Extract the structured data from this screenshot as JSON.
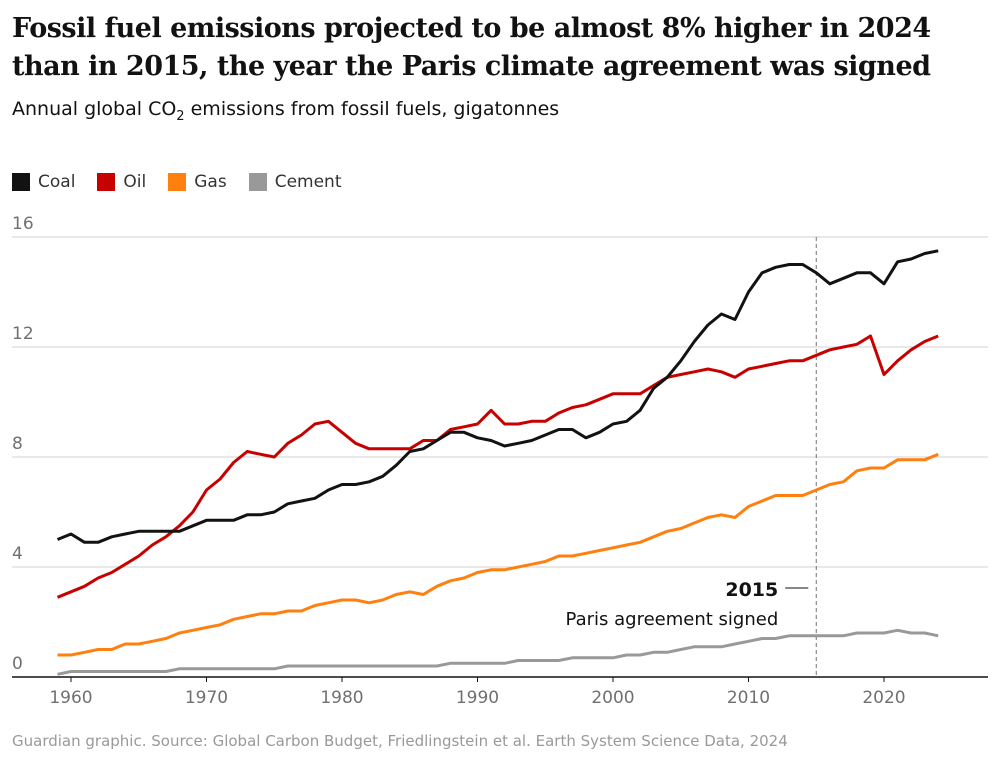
{
  "title": "Fossil fuel emissions projected to be almost 8% higher in 2024 than in 2015, the year the Paris climate agreement was signed",
  "subtitle_pre": "Annual global CO",
  "subtitle_sub": "2",
  "subtitle_post": " emissions from fossil fuels, gigatonnes",
  "footer": "Guardian graphic. Source: Global Carbon Budget, Friedlingstein et al. Earth System Science Data, 2024",
  "chart_data": {
    "type": "line",
    "title": "Fossil fuel emissions projected to be almost 8% higher in 2024 than in 2015, the year the Paris climate agreement was signed",
    "ylabel": "Annual global CO2 emissions from fossil fuels, gigatonnes",
    "xlabel": "",
    "xlim": [
      1959,
      2024
    ],
    "ylim": [
      0,
      16
    ],
    "yticks": [
      0,
      4,
      8,
      12,
      16
    ],
    "xticks": [
      1960,
      1970,
      1980,
      1990,
      2000,
      2010,
      2020
    ],
    "legend_position": "top-left",
    "grid": true,
    "annotation": {
      "year": 2015,
      "label_year": "2015",
      "label_text": "Paris agreement signed"
    },
    "x_start": 1959,
    "series": [
      {
        "name": "Coal",
        "color": "#121212",
        "values": [
          5.0,
          5.2,
          4.9,
          4.9,
          5.1,
          5.2,
          5.3,
          5.3,
          5.3,
          5.3,
          5.5,
          5.7,
          5.7,
          5.7,
          5.9,
          5.9,
          6.0,
          6.3,
          6.4,
          6.5,
          6.8,
          7.0,
          7.0,
          7.1,
          7.3,
          7.7,
          8.2,
          8.3,
          8.6,
          8.9,
          8.9,
          8.7,
          8.6,
          8.4,
          8.5,
          8.6,
          8.8,
          9.0,
          9.0,
          8.7,
          8.9,
          9.2,
          9.3,
          9.7,
          10.5,
          10.9,
          11.5,
          12.2,
          12.8,
          13.2,
          13.0,
          14.0,
          14.7,
          14.9,
          15.0,
          15.0,
          14.7,
          14.3,
          14.5,
          14.7,
          14.7,
          14.3,
          15.1,
          15.2,
          15.4,
          15.5
        ]
      },
      {
        "name": "Oil",
        "color": "#c70000",
        "values": [
          2.9,
          3.1,
          3.3,
          3.6,
          3.8,
          4.1,
          4.4,
          4.8,
          5.1,
          5.5,
          6.0,
          6.8,
          7.2,
          7.8,
          8.2,
          8.1,
          8.0,
          8.5,
          8.8,
          9.2,
          9.3,
          8.9,
          8.5,
          8.3,
          8.3,
          8.3,
          8.3,
          8.6,
          8.6,
          9.0,
          9.1,
          9.2,
          9.7,
          9.2,
          9.2,
          9.3,
          9.3,
          9.6,
          9.8,
          9.9,
          10.1,
          10.3,
          10.3,
          10.3,
          10.6,
          10.9,
          11.0,
          11.1,
          11.2,
          11.1,
          10.9,
          11.2,
          11.3,
          11.4,
          11.5,
          11.5,
          11.7,
          11.9,
          12.0,
          12.1,
          12.4,
          11.0,
          11.5,
          11.9,
          12.2,
          12.4
        ]
      },
      {
        "name": "Gas",
        "color": "#ff7f0f",
        "values": [
          0.8,
          0.8,
          0.9,
          1.0,
          1.0,
          1.2,
          1.2,
          1.3,
          1.4,
          1.6,
          1.7,
          1.8,
          1.9,
          2.1,
          2.2,
          2.3,
          2.3,
          2.4,
          2.4,
          2.6,
          2.7,
          2.8,
          2.8,
          2.7,
          2.8,
          3.0,
          3.1,
          3.0,
          3.3,
          3.5,
          3.6,
          3.8,
          3.9,
          3.9,
          4.0,
          4.1,
          4.2,
          4.4,
          4.4,
          4.5,
          4.6,
          4.7,
          4.8,
          4.9,
          5.1,
          5.3,
          5.4,
          5.6,
          5.8,
          5.9,
          5.8,
          6.2,
          6.4,
          6.6,
          6.6,
          6.6,
          6.8,
          7.0,
          7.1,
          7.5,
          7.6,
          7.6,
          7.9,
          7.9,
          7.9,
          8.1
        ]
      },
      {
        "name": "Cement",
        "color": "#999999",
        "values": [
          0.1,
          0.2,
          0.2,
          0.2,
          0.2,
          0.2,
          0.2,
          0.2,
          0.2,
          0.3,
          0.3,
          0.3,
          0.3,
          0.3,
          0.3,
          0.3,
          0.3,
          0.4,
          0.4,
          0.4,
          0.4,
          0.4,
          0.4,
          0.4,
          0.4,
          0.4,
          0.4,
          0.4,
          0.4,
          0.5,
          0.5,
          0.5,
          0.5,
          0.5,
          0.6,
          0.6,
          0.6,
          0.6,
          0.7,
          0.7,
          0.7,
          0.7,
          0.8,
          0.8,
          0.9,
          0.9,
          1.0,
          1.1,
          1.1,
          1.1,
          1.2,
          1.3,
          1.4,
          1.4,
          1.5,
          1.5,
          1.5,
          1.5,
          1.5,
          1.6,
          1.6,
          1.6,
          1.7,
          1.6,
          1.6,
          1.5
        ]
      }
    ]
  }
}
